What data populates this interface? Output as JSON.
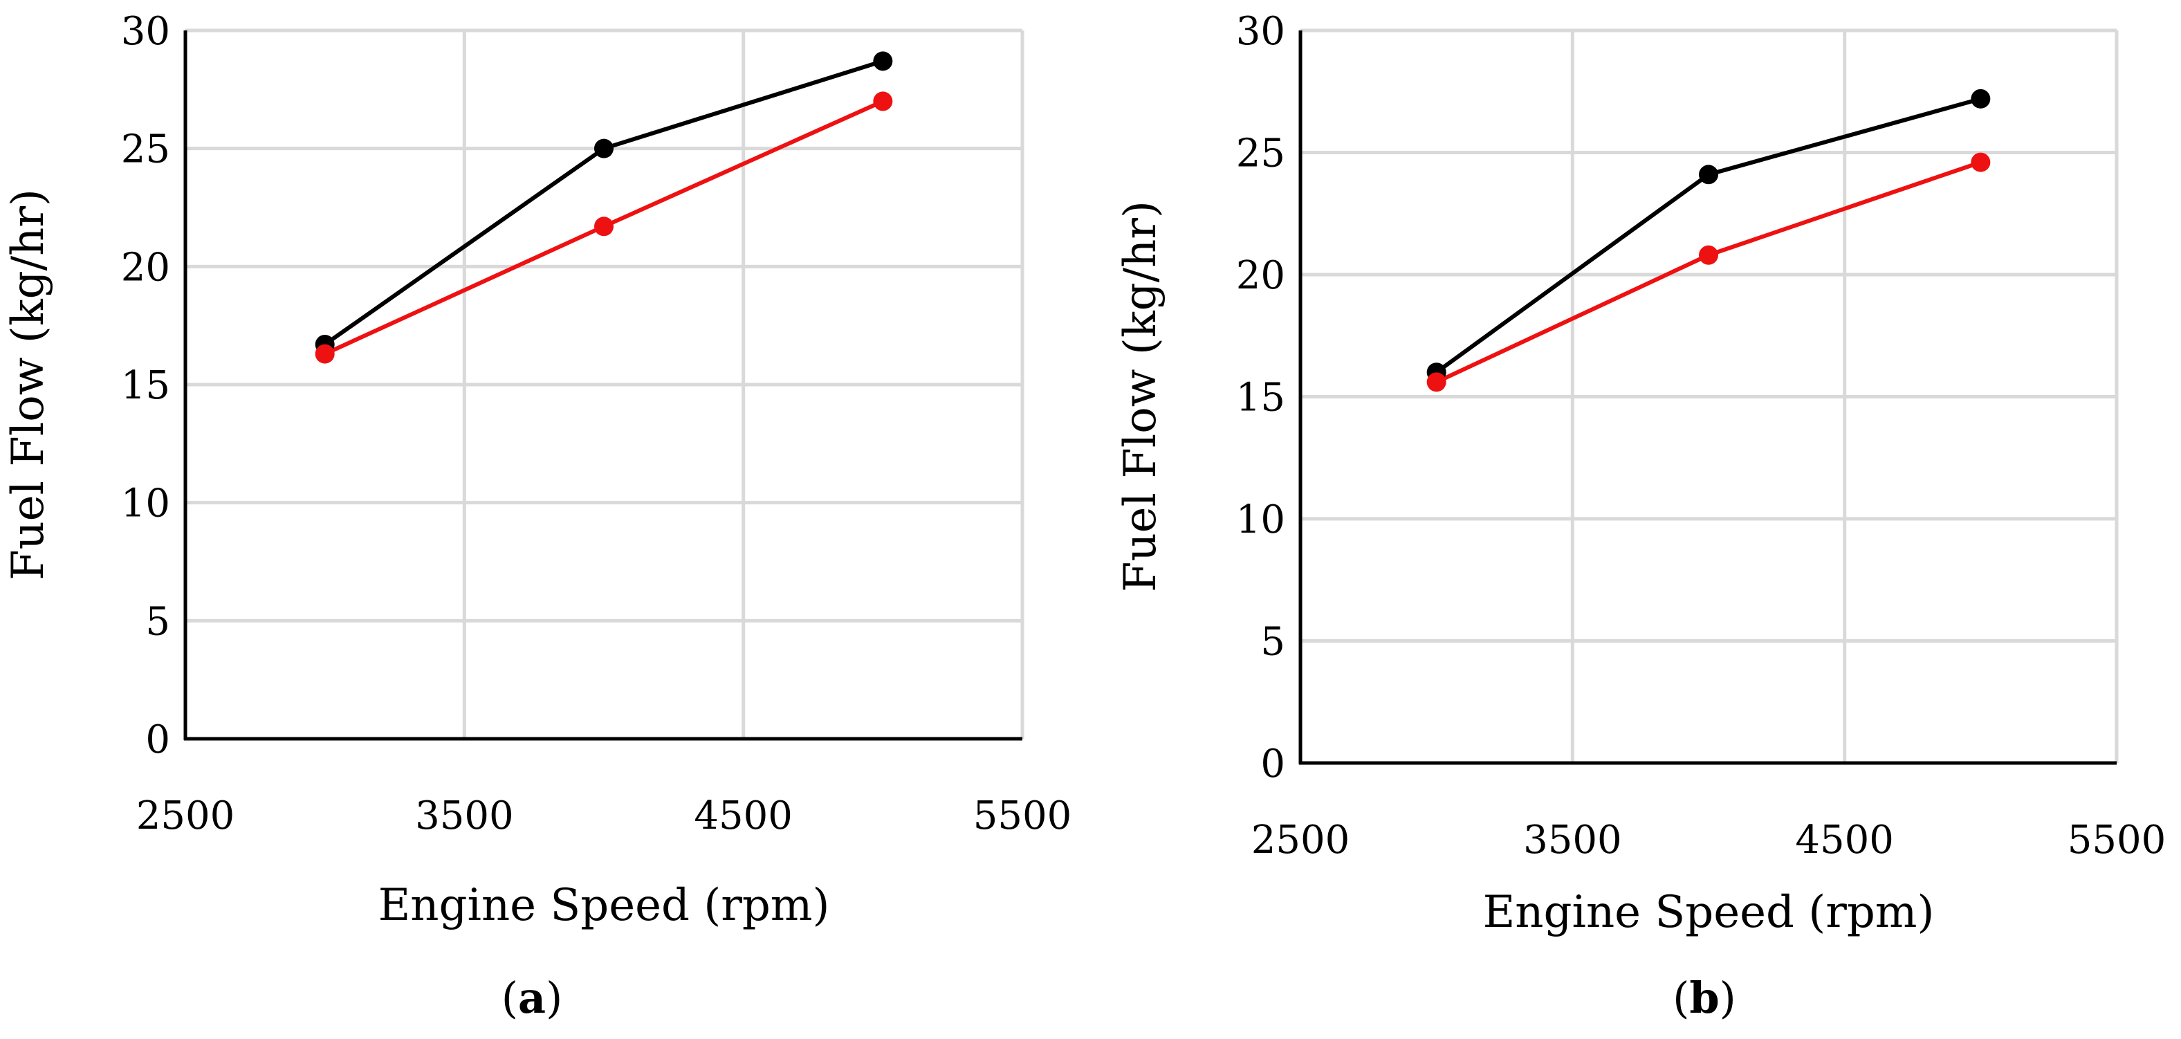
{
  "chart_data": [
    {
      "type": "line",
      "panel_label": "a",
      "xlabel": "Engine Speed (rpm)",
      "ylabel": "Fuel Flow (kg/hr)",
      "xlim": [
        2500,
        5500
      ],
      "ylim": [
        0,
        30
      ],
      "xticks": [
        2500,
        3500,
        4500,
        5500
      ],
      "yticks": [
        0,
        5,
        10,
        15,
        20,
        25,
        30
      ],
      "grid": true,
      "x": [
        3000,
        4000,
        5000
      ],
      "series": [
        {
          "name": "black series",
          "color": "#000000",
          "values": [
            16.7,
            25.0,
            28.7
          ]
        },
        {
          "name": "red series",
          "color": "#ee1111",
          "values": [
            16.3,
            21.7,
            27.0
          ]
        }
      ]
    },
    {
      "type": "line",
      "panel_label": "b",
      "xlabel": "Engine Speed (rpm)",
      "ylabel": "Fuel Flow (kg/hr)",
      "xlim": [
        2500,
        5500
      ],
      "ylim": [
        0,
        30
      ],
      "xticks": [
        2500,
        3500,
        4500,
        5500
      ],
      "yticks": [
        0,
        5,
        10,
        15,
        20,
        25,
        30
      ],
      "grid": true,
      "x": [
        3000,
        4000,
        5000
      ],
      "series": [
        {
          "name": "black series",
          "color": "#000000",
          "values": [
            16.0,
            24.1,
            27.2
          ]
        },
        {
          "name": "red series",
          "color": "#ee1111",
          "values": [
            15.6,
            20.8,
            24.6
          ]
        }
      ]
    }
  ]
}
